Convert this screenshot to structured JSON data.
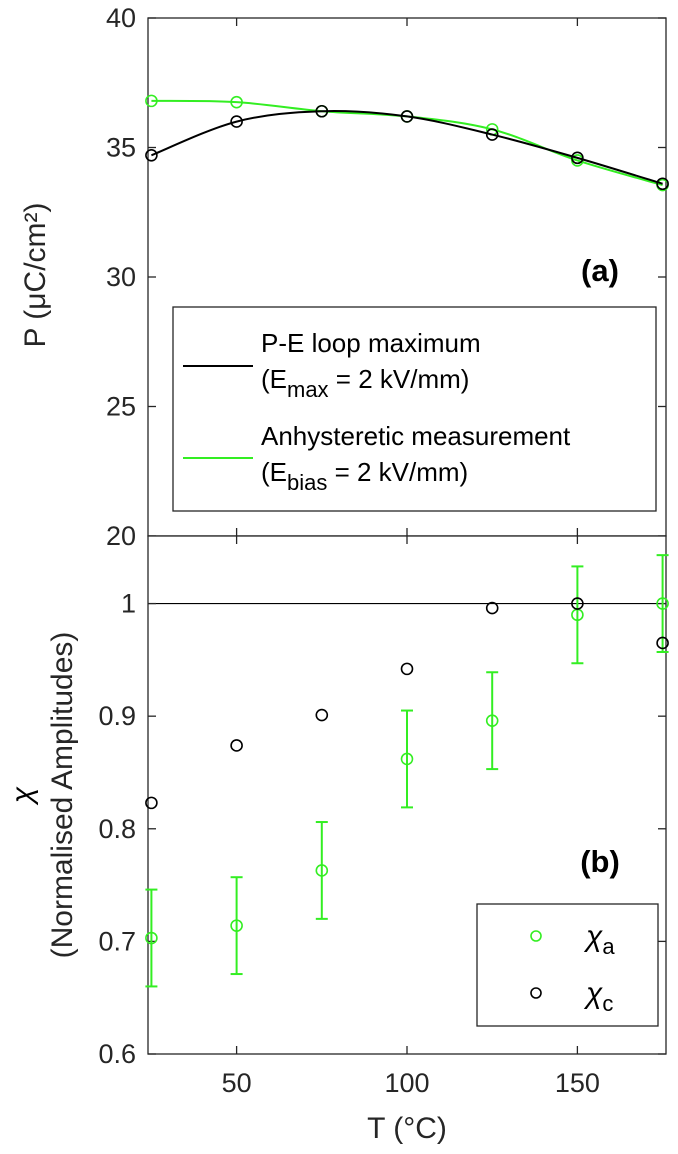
{
  "colors": {
    "black_series": "#000000",
    "green_series": "#33ee22",
    "axis": "#262626"
  },
  "chart_data": [
    {
      "panel": "(a)",
      "type": "line",
      "xlim": [
        24,
        176
      ],
      "ylim": [
        20,
        40
      ],
      "yticks": [
        "20",
        "25",
        "30",
        "35",
        "40"
      ],
      "ylabel": "P (μC/cm²)",
      "grid": false,
      "legend_position": "bottom-right",
      "series": [
        {
          "name": "P-E loop maximum",
          "name_line2": "(E",
          "name_sub": "max",
          "name_tail": " = 2 kV/mm)",
          "color": "#000000",
          "x": [
            25,
            50,
            75,
            100,
            125,
            150,
            175
          ],
          "y": [
            34.7,
            36.0,
            36.4,
            36.2,
            35.5,
            34.6,
            33.6
          ]
        },
        {
          "name": "Anhysteretic measurement",
          "name_line2": "(E",
          "name_sub": "bias",
          "name_tail": " = 2 kV/mm)",
          "color": "#33ee22",
          "x": [
            25,
            50,
            75,
            100,
            125,
            150,
            175
          ],
          "y": [
            36.8,
            36.75,
            36.4,
            36.2,
            35.7,
            34.5,
            33.55
          ]
        }
      ]
    },
    {
      "panel": "(b)",
      "type": "scatter",
      "xlim": [
        24,
        176
      ],
      "ylim": [
        0.6,
        1.06
      ],
      "xticks": [
        "50",
        "100",
        "150"
      ],
      "yticks": [
        "0.6",
        "0.7",
        "0.8",
        "0.9",
        "1"
      ],
      "xlabel": "T (°C)",
      "ylabel_symbol": "χ",
      "ylabel": "(Normalised Amplitudes)",
      "reference_line": 1,
      "grid": false,
      "legend_position": "bottom-right",
      "series": [
        {
          "name": "χ",
          "name_sub": "a",
          "color": "#33ee22",
          "x": [
            25,
            50,
            75,
            100,
            125,
            150,
            175
          ],
          "y": [
            0.703,
            0.714,
            0.763,
            0.862,
            0.896,
            0.99,
            1.0
          ],
          "yerr": [
            0.043,
            0.043,
            0.043,
            0.043,
            0.043,
            0.043,
            0.043
          ]
        },
        {
          "name": "χ",
          "name_sub": "c",
          "color": "#000000",
          "x": [
            25,
            50,
            75,
            100,
            125,
            150,
            175
          ],
          "y": [
            0.823,
            0.874,
            0.901,
            0.942,
            0.996,
            1.0,
            0.965
          ]
        }
      ]
    }
  ]
}
